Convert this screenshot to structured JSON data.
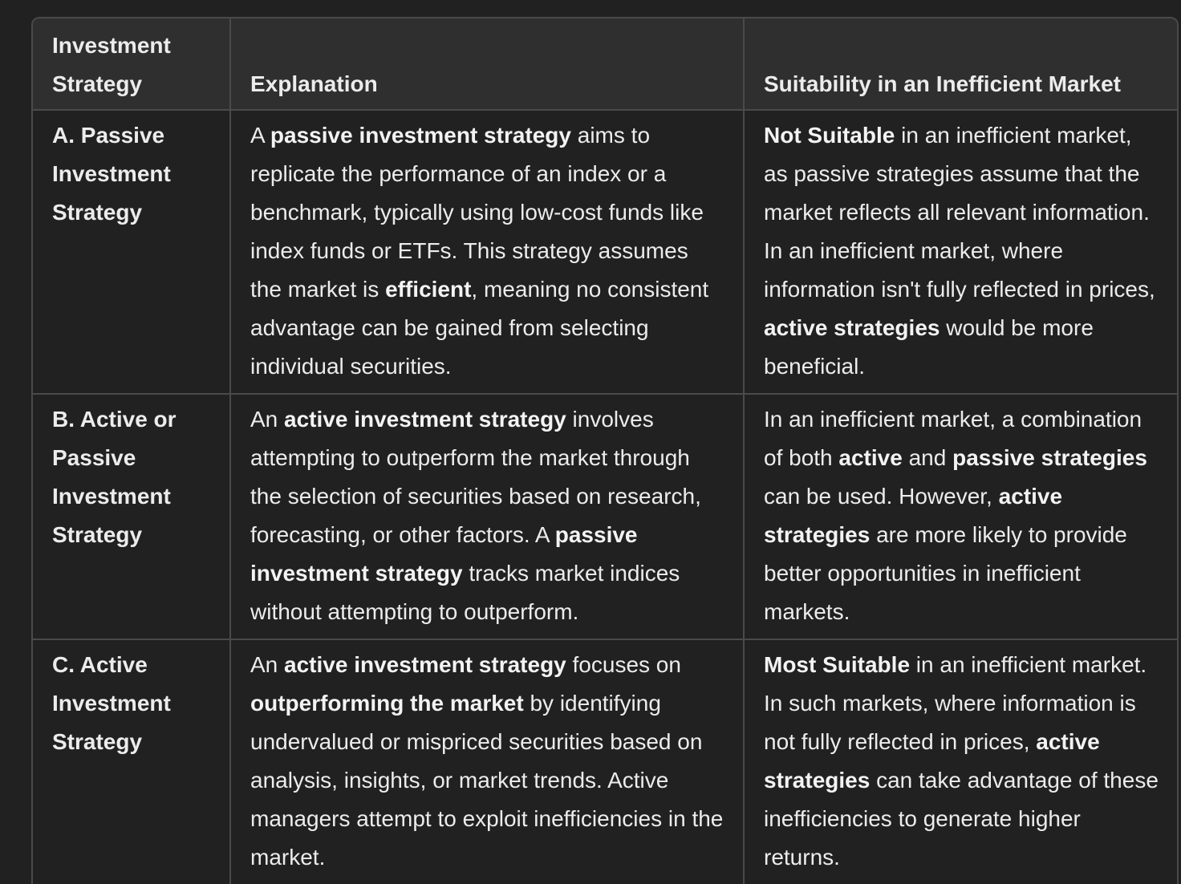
{
  "table": {
    "headers": {
      "strategy": "Investment Strategy",
      "explanation": "Explanation",
      "suitability": "Suitability in an Inefficient Market"
    },
    "rows": [
      {
        "strategy": "A. Passive Investment Strategy",
        "explanation": {
          "t1": "A ",
          "b1": "passive investment strategy",
          "t2": " aims to replicate the performance of an index or a benchmark, typically using low-cost funds like index funds or ETFs. This strategy assumes the market is ",
          "b2": "efficient",
          "t3": ", meaning no consistent advantage can be gained from selecting individual securities."
        },
        "suitability": {
          "b1": "Not Suitable",
          "t1": " in an inefficient market, as passive strategies assume that the market reflects all relevant information. In an inefficient market, where information isn't fully reflected in prices, ",
          "b2": "active strategies",
          "t2": " would be more beneficial."
        }
      },
      {
        "strategy": "B. Active or Passive Investment Strategy",
        "explanation": {
          "t1": "An ",
          "b1": "active investment strategy",
          "t2": " involves attempting to outperform the market through the selection of securities based on research, forecasting, or other factors. A ",
          "b2": "passive investment strategy",
          "t3": " tracks market indices without attempting to outperform."
        },
        "suitability": {
          "t1": "In an inefficient market, a combination of both ",
          "b1": "active",
          "t2": " and ",
          "b2": "passive strategies",
          "t3": " can be used. However, ",
          "b3": "active strategies",
          "t4": " are more likely to provide better opportunities in inefficient markets."
        }
      },
      {
        "strategy": "C. Active Investment Strategy",
        "explanation": {
          "t1": "An ",
          "b1": "active investment strategy",
          "t2": " focuses on ",
          "b2": "outperforming the market",
          "t3": " by identifying undervalued or mispriced securities based on analysis, insights, or market trends. Active managers attempt to exploit inefficiencies in the market."
        },
        "suitability": {
          "b1": "Most Suitable",
          "t1": " in an inefficient market. In such markets, where information is not fully reflected in prices, ",
          "b2": "active strategies",
          "t2": " can take advantage of these inefficiencies to generate higher returns."
        }
      }
    ]
  }
}
